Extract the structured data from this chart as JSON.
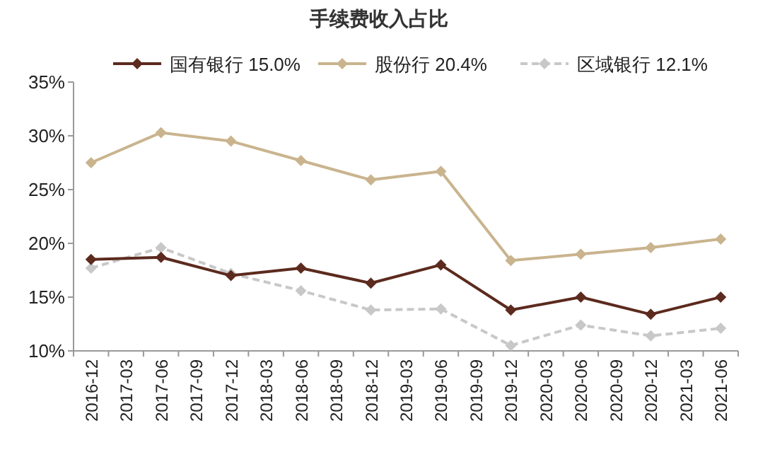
{
  "chart_data": {
    "type": "line",
    "title": "手续费收入占比",
    "categories": [
      "2016-12",
      "2017-03",
      "2017-06",
      "2017-09",
      "2017-12",
      "2018-03",
      "2018-06",
      "2018-09",
      "2018-12",
      "2019-03",
      "2019-06",
      "2019-09",
      "2019-12",
      "2020-03",
      "2020-06",
      "2020-09",
      "2020-12",
      "2021-03",
      "2021-06"
    ],
    "series": [
      {
        "name": "国有银行  15.0%",
        "color": "#5c2a1e",
        "line_style": "solid",
        "values": [
          18.5,
          null,
          18.7,
          null,
          17.0,
          null,
          17.7,
          null,
          16.3,
          null,
          18.0,
          null,
          13.8,
          null,
          15.0,
          null,
          13.4,
          null,
          15.0
        ]
      },
      {
        "name": "股份行  20.4%",
        "color": "#c9b48e",
        "line_style": "solid",
        "values": [
          27.5,
          null,
          30.3,
          null,
          29.5,
          null,
          27.7,
          null,
          25.9,
          null,
          26.7,
          null,
          18.4,
          null,
          19.0,
          null,
          19.6,
          null,
          20.4
        ]
      },
      {
        "name": "区域银行  12.1%",
        "color": "#c8c8c8",
        "line_style": "dashed",
        "values": [
          17.7,
          null,
          19.6,
          null,
          17.2,
          null,
          15.6,
          null,
          13.8,
          null,
          13.9,
          null,
          10.5,
          null,
          12.4,
          null,
          11.4,
          null,
          12.1
        ]
      }
    ],
    "ylim": [
      10,
      35
    ],
    "yticks": [
      {
        "value": 10,
        "label": "10%"
      },
      {
        "value": 15,
        "label": "15%"
      },
      {
        "value": 20,
        "label": "20%"
      },
      {
        "value": 25,
        "label": "25%"
      },
      {
        "value": 30,
        "label": "30%"
      },
      {
        "value": 35,
        "label": "35%"
      }
    ],
    "marker": "diamond",
    "legend": "top",
    "grid": false
  }
}
